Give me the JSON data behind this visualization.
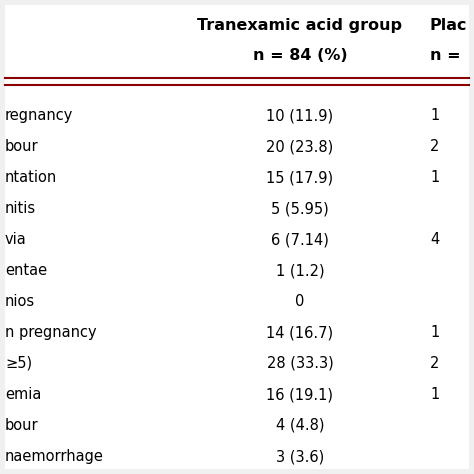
{
  "col1_header": "Tranexamic acid group",
  "col1_subheader": "n = 84 (%)",
  "col2_header": "Plac",
  "col2_subheader": "n =",
  "rows": [
    {
      "label": "regnancy",
      "col1": "10 (11.9)",
      "col2": "1"
    },
    {
      "label": "bour",
      "col1": "20 (23.8)",
      "col2": "2"
    },
    {
      "label": "ntation",
      "col1": "15 (17.9)",
      "col2": "1"
    },
    {
      "label": "nitis",
      "col1": "5 (5.95)",
      "col2": ""
    },
    {
      "label": "via",
      "col1": "6 (7.14)",
      "col2": "4"
    },
    {
      "label": "entae",
      "col1": "1 (1.2)",
      "col2": ""
    },
    {
      "label": "nios",
      "col1": "0",
      "col2": ""
    },
    {
      "label": "n pregnancy",
      "col1": "14 (16.7)",
      "col2": "1"
    },
    {
      "label": "≥5)",
      "col1": "28 (33.3)",
      "col2": "2"
    },
    {
      "label": "emia",
      "col1": "16 (19.1)",
      "col2": "1"
    },
    {
      "label": "bour",
      "col1": "4 (4.8)",
      "col2": ""
    },
    {
      "label": "naemorrhage",
      "col1": "3 (3.6)",
      "col2": ""
    }
  ],
  "header_line_color": "#8B0000",
  "bg_color": "#f0f0f0",
  "bg_inner": "#ffffff",
  "text_color": "#000000",
  "font_size": 10.5,
  "header_font_size": 11.5
}
